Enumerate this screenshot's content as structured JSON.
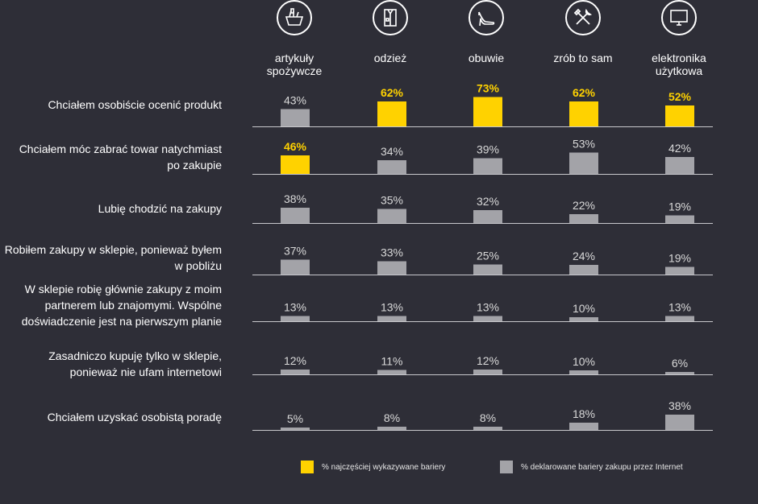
{
  "chart_data": {
    "type": "bar",
    "title": "",
    "categories": [
      "artykuły spożywcze",
      "odzież",
      "obuwie",
      "zrób to sam",
      "elektronika użytkowa"
    ],
    "category_icons": [
      "grocery-basket-icon",
      "shirt-icon",
      "high-heel-shoe-icon",
      "tools-icon",
      "monitor-icon"
    ],
    "rows": [
      {
        "label": "Chciałem osobiście ocenić produkt",
        "values": [
          43,
          62,
          73,
          62,
          52
        ],
        "highlight": [
          false,
          true,
          true,
          true,
          true
        ]
      },
      {
        "label": "Chciałem móc zabrać towar natychmiast po zakupie",
        "values": [
          46,
          34,
          39,
          53,
          42
        ],
        "highlight": [
          true,
          false,
          false,
          false,
          false
        ]
      },
      {
        "label": "Lubię chodzić na zakupy",
        "values": [
          38,
          35,
          32,
          22,
          19
        ],
        "highlight": [
          false,
          false,
          false,
          false,
          false
        ]
      },
      {
        "label": "Robiłem zakupy w sklepie, ponieważ byłem w pobliżu",
        "values": [
          37,
          33,
          25,
          24,
          19
        ],
        "highlight": [
          false,
          false,
          false,
          false,
          false
        ]
      },
      {
        "label": "W sklepie robię głównie zakupy z moim partnerem lub znajomymi. Wspólne doświadczenie jest na pierwszym planie",
        "values": [
          13,
          13,
          13,
          10,
          13
        ],
        "highlight": [
          false,
          false,
          false,
          false,
          false
        ]
      },
      {
        "label": "Zasadniczo kupuję tylko w sklepie, ponieważ nie ufam internetowi",
        "values": [
          12,
          11,
          12,
          10,
          6
        ],
        "highlight": [
          false,
          false,
          false,
          false,
          false
        ]
      },
      {
        "label": "Chciałem uzyskać osobistą poradę",
        "values": [
          5,
          8,
          8,
          18,
          38
        ],
        "highlight": [
          false,
          false,
          false,
          false,
          false
        ]
      }
    ],
    "value_suffix": "%",
    "legend": [
      {
        "label": "% najczęściej wykazywane bariery",
        "color": "#ffd200"
      },
      {
        "label": "% deklarowane bariery zakupu przez Internet",
        "color": "#a3a3a8"
      }
    ],
    "colors": {
      "highlight": "#ffd200",
      "normal": "#a3a3a8",
      "baseline": "#c8c8cc",
      "text_highlight": "#ffd200",
      "text_normal": "#d9d9d9"
    }
  }
}
